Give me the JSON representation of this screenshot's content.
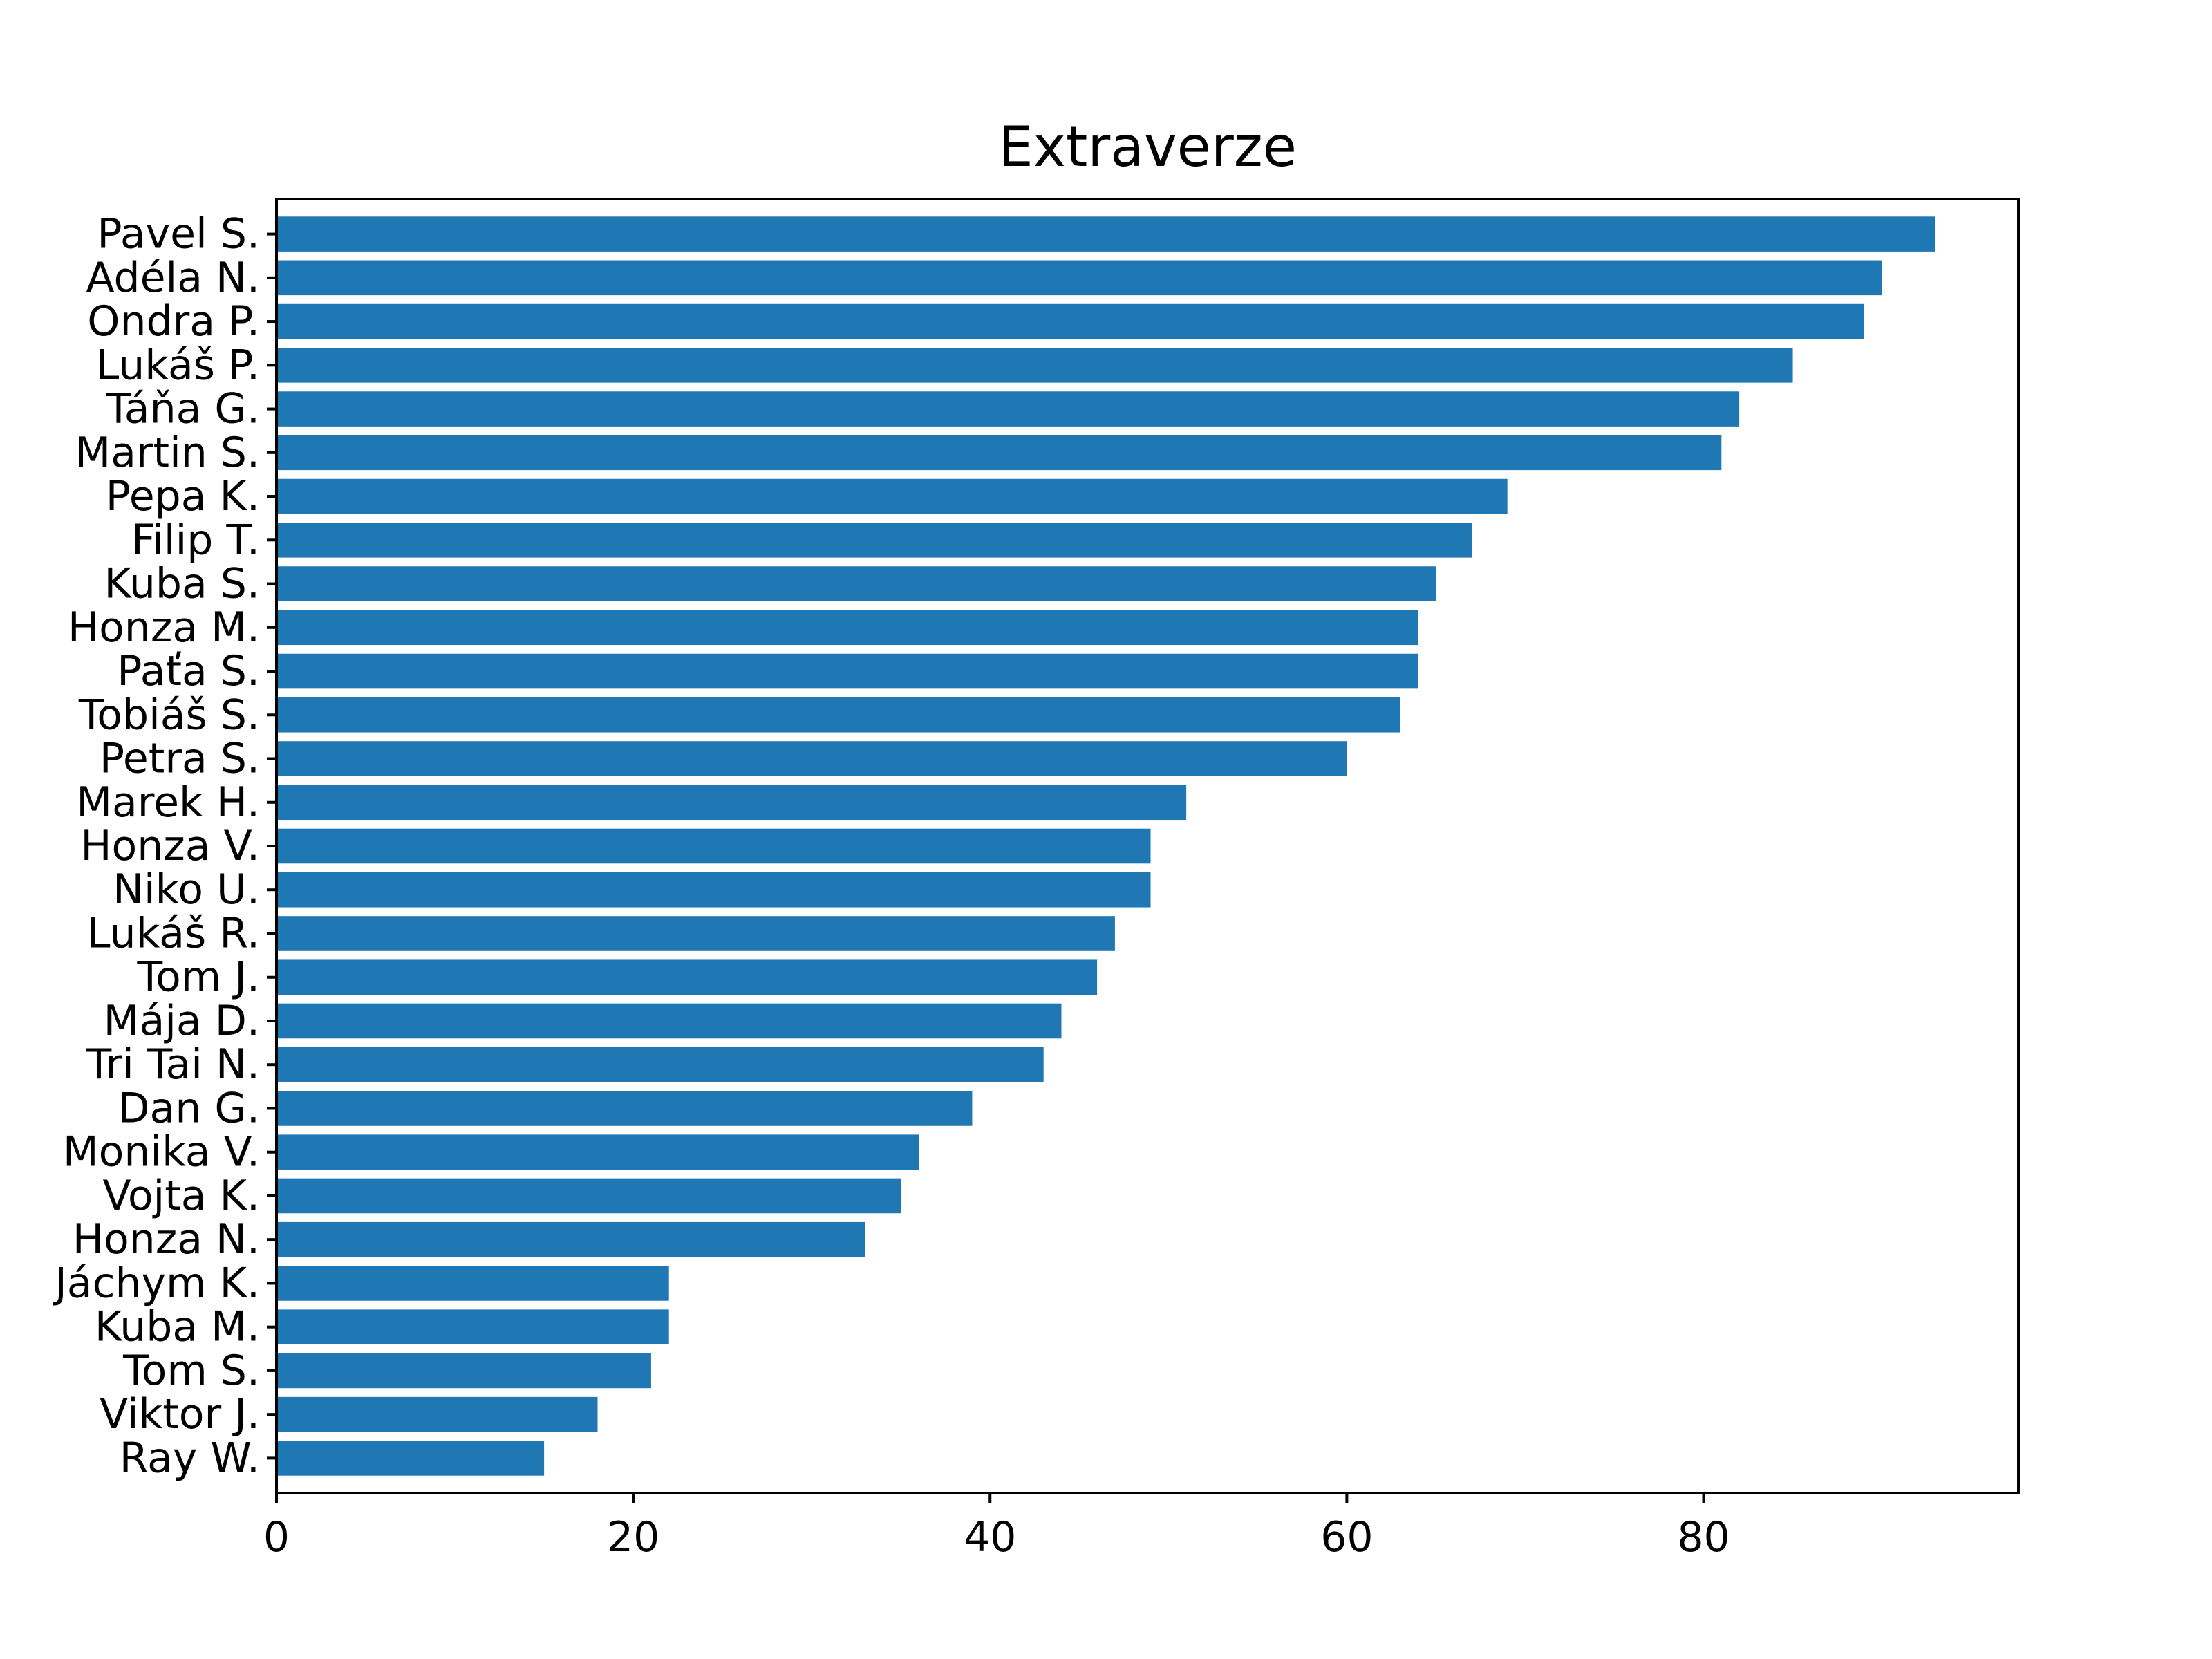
{
  "chart_data": {
    "type": "bar",
    "orientation": "horizontal",
    "title": "Extraverze",
    "xlabel": "",
    "ylabel": "",
    "xlim": [
      0,
      97.65
    ],
    "xticks": [
      0,
      20,
      40,
      60,
      80
    ],
    "grid": false,
    "bar_color": "#1f77b4",
    "categories": [
      "Pavel S.",
      "Adéla N.",
      "Ondra P.",
      "Lukáš P.",
      "Táňa G.",
      "Martin S.",
      "Pepa K.",
      "Filip T.",
      "Kuba S.",
      "Honza M.",
      "Paťa S.",
      "Tobiáš S.",
      "Petra S.",
      "Marek H.",
      "Honza V.",
      "Niko U.",
      "Lukáš R.",
      "Tom J.",
      "Mája D.",
      "Tri Tai N.",
      "Dan G.",
      "Monika V.",
      "Vojta K.",
      "Honza N.",
      "Jáchym K.",
      "Kuba M.",
      "Tom S.",
      "Viktor J.",
      "Ray W."
    ],
    "values": [
      93,
      90,
      89,
      85,
      82,
      81,
      69,
      67,
      65,
      64,
      64,
      63,
      60,
      51,
      49,
      49,
      47,
      46,
      44,
      43,
      39,
      36,
      35,
      33,
      22,
      22,
      21,
      18,
      15
    ]
  }
}
